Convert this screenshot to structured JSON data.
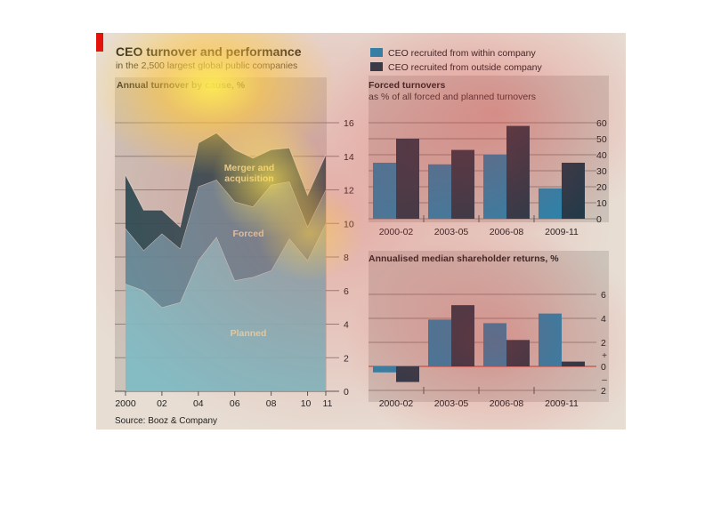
{
  "header": {
    "title": "CEO turnover and performance",
    "subtitle": "in the 2,500 largest global public companies"
  },
  "legend": {
    "items": [
      {
        "label": "CEO recruited from within company",
        "color": "#1e88b3"
      },
      {
        "label": "CEO recruited from outside company",
        "color": "#1a3a4a"
      }
    ]
  },
  "source": "Source: Booz & Company",
  "colors": {
    "accent_red": "#e3120b",
    "panel_bg": "#e7ddd3",
    "plot_bg": "#ccc3ba",
    "planned": "#7fbcc4",
    "forced": "#5a8c9b",
    "merger": "#1e4a52",
    "inside": "#1e88b3",
    "outside": "#1a3a4a"
  },
  "chart_data": [
    {
      "type": "area",
      "title": "Annual turnover by cause, %",
      "x": [
        2000,
        2001,
        2002,
        2003,
        2004,
        2005,
        2006,
        2007,
        2008,
        2009,
        2010,
        2011
      ],
      "x_tick_labels": [
        "2000",
        "02",
        "04",
        "06",
        "08",
        "10",
        "11"
      ],
      "ylim": [
        0,
        16
      ],
      "y_ticks": [
        0,
        2,
        4,
        6,
        8,
        10,
        12,
        14,
        16
      ],
      "stacked": true,
      "series": [
        {
          "name": "Planned",
          "values": [
            6.4,
            6.0,
            5.0,
            5.3,
            7.8,
            9.2,
            6.6,
            6.8,
            7.2,
            9.1,
            7.8,
            10.0
          ]
        },
        {
          "name": "Forced",
          "values": [
            3.3,
            2.4,
            4.4,
            3.2,
            4.4,
            3.4,
            4.7,
            4.2,
            5.1,
            3.4,
            2.0,
            2.0
          ]
        },
        {
          "name": "Merger and acquisition",
          "values": [
            3.2,
            2.4,
            1.4,
            1.3,
            2.6,
            2.8,
            3.1,
            2.9,
            2.1,
            2.0,
            1.9,
            2.1
          ]
        }
      ],
      "labels": [
        "Merger and acquisition",
        "Forced",
        "Planned"
      ],
      "grid": true,
      "y_axis_side": "right"
    },
    {
      "type": "bar",
      "title": "Forced turnovers",
      "subtitle": "as % of all forced and planned turnovers",
      "categories": [
        "2000-02",
        "2003-05",
        "2006-08",
        "2009-11"
      ],
      "series": [
        {
          "name": "CEO recruited from within company",
          "values": [
            35,
            34,
            40,
            19
          ]
        },
        {
          "name": "CEO recruited from outside company",
          "values": [
            50,
            43,
            58,
            35
          ]
        }
      ],
      "ylim": [
        0,
        60
      ],
      "y_ticks": [
        0,
        10,
        20,
        30,
        40,
        50,
        60
      ],
      "grid": true,
      "y_axis_side": "right"
    },
    {
      "type": "bar",
      "title": "Annualised median shareholder returns, %",
      "categories": [
        "2000-02",
        "2003-05",
        "2006-08",
        "2009-11"
      ],
      "series": [
        {
          "name": "CEO recruited from within company",
          "values": [
            -0.5,
            3.9,
            3.6,
            4.4
          ]
        },
        {
          "name": "CEO recruited from outside company",
          "values": [
            -1.3,
            5.1,
            2.2,
            0.4
          ]
        }
      ],
      "ylim": [
        -2,
        6
      ],
      "y_ticks": [
        -2,
        0,
        2,
        4,
        6
      ],
      "y_tick_labels": [
        "2",
        "0",
        "2",
        "4",
        "6"
      ],
      "sign_markers": [
        "+",
        "–"
      ],
      "grid": true,
      "y_axis_side": "right"
    }
  ]
}
